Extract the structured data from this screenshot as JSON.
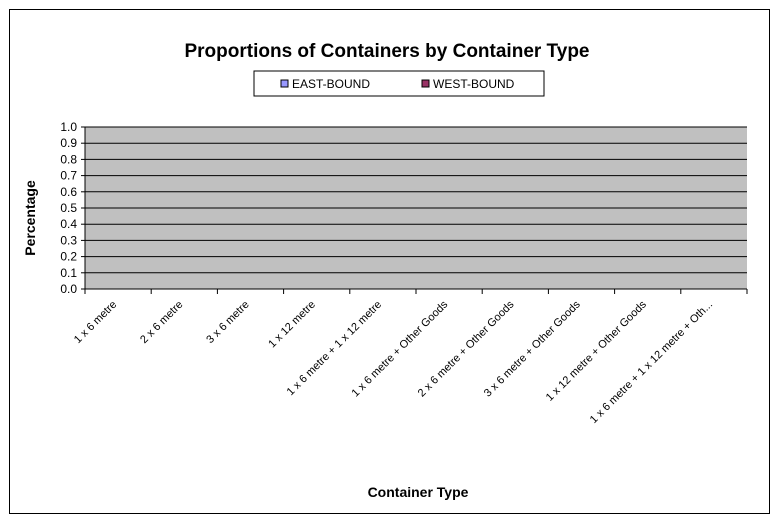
{
  "chart_data": {
    "type": "bar",
    "title": "Proportions of Containers by Container Type",
    "xlabel": "Container Type",
    "ylabel": "Percentage",
    "ylim": [
      0,
      1
    ],
    "yticks": [
      "0.0",
      "0.1",
      "0.2",
      "0.3",
      "0.4",
      "0.5",
      "0.6",
      "0.7",
      "0.8",
      "0.9",
      "1.0"
    ],
    "categories": [
      "1 x 6 metre",
      "2 x 6 metre",
      "3 x 6 metre",
      "1 x 12 metre",
      "1 x 6 metre + 1 x 12 metre",
      "1 x 6 metre + Other Goods",
      "2 x 6 metre + Other Goods",
      "3 x 6 metre + Other Goods",
      "1 x 12 metre + Other Goods",
      "1 x 6 metre + 1 x 12 metre + Oth..."
    ],
    "series": [
      {
        "name": "EAST-BOUND",
        "color": "#9999ff",
        "values": [
          0,
          0,
          0,
          0,
          0,
          0,
          0,
          0,
          0,
          0
        ]
      },
      {
        "name": "WEST-BOUND",
        "color": "#993366",
        "values": [
          0,
          0,
          0,
          0,
          0,
          0,
          0,
          0,
          0,
          0
        ]
      }
    ],
    "grid": true,
    "legend": "top-center",
    "plot_background": "#c0c0c0"
  }
}
